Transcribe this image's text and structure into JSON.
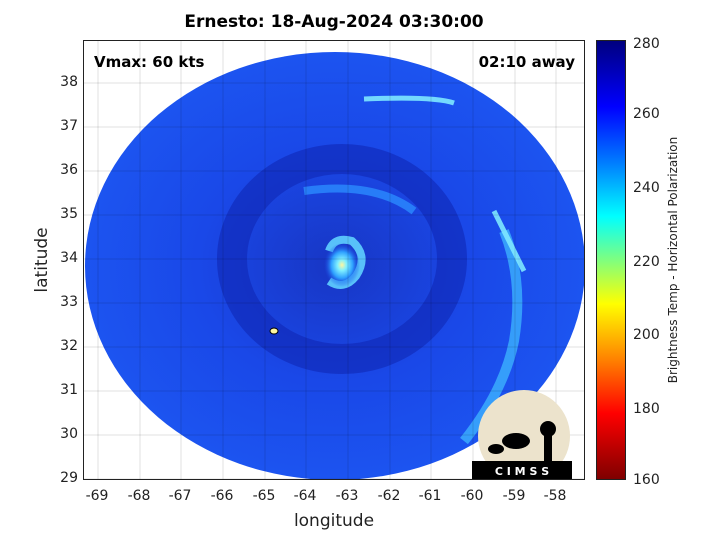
{
  "title": "Ernesto: 18-Aug-2024 03:30:00",
  "annotations": {
    "vmax": "Vmax: 60 kts",
    "time_away": "02:10 away"
  },
  "axes": {
    "xlabel": "longitude",
    "ylabel": "latitude",
    "x_ticks": [
      "-69",
      "-68",
      "-67",
      "-66",
      "-65",
      "-64",
      "-63",
      "-62",
      "-61",
      "-60",
      "-59",
      "-58"
    ],
    "y_ticks": [
      "38",
      "37",
      "36",
      "35",
      "34",
      "33",
      "32",
      "31",
      "30",
      "29"
    ],
    "xlim": [
      -69.3,
      -57.4
    ],
    "ylim": [
      28.9,
      38.9
    ],
    "grid": true
  },
  "colorbar": {
    "label": "Brightness Temp - Horizontal Polarization",
    "ticks": [
      "280",
      "260",
      "240",
      "220",
      "200",
      "180",
      "160"
    ],
    "range": [
      160,
      280
    ]
  },
  "storm": {
    "center_lon": -63.1,
    "center_lat": 33.8
  },
  "logo": {
    "text": "C I M S S"
  },
  "colors": {
    "background_blue": "#1a47e0",
    "dark_blue": "#0d1fa0",
    "cyan": "#7ee8ff"
  }
}
